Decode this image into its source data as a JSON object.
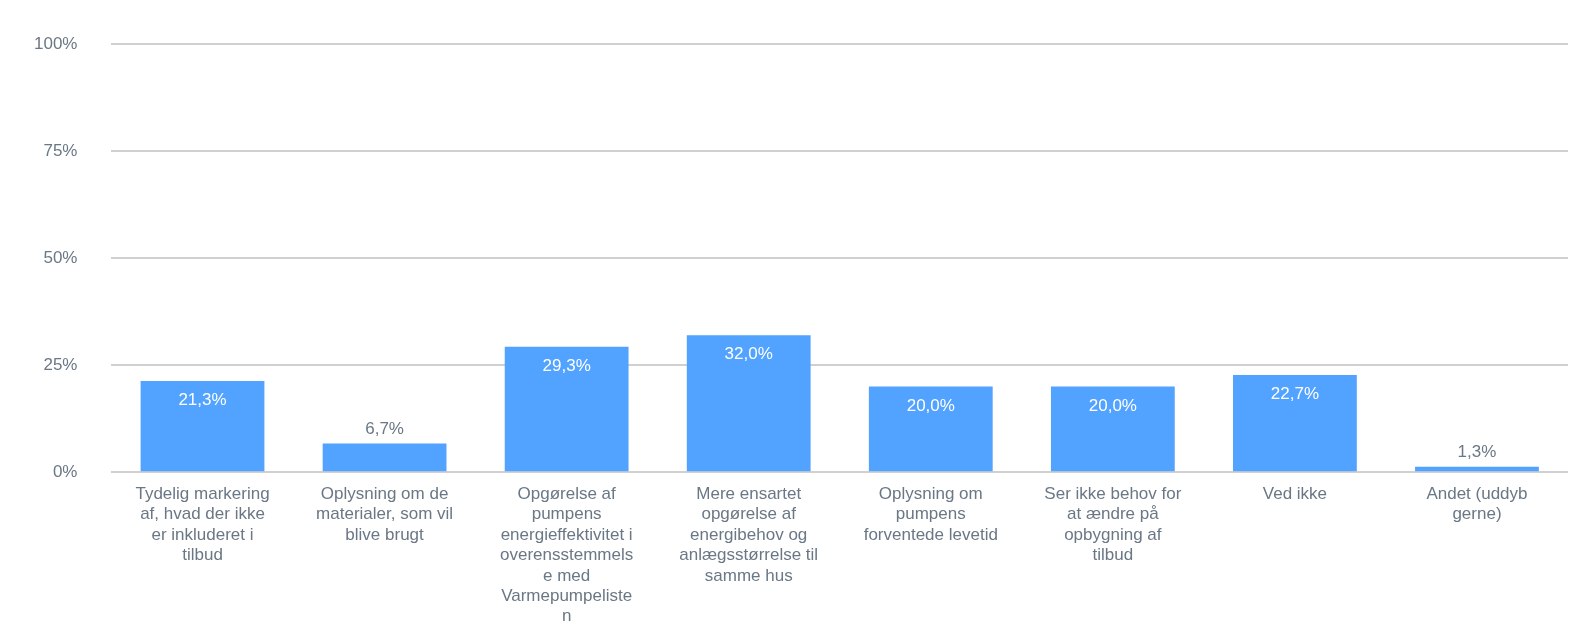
{
  "chart_data": {
    "type": "bar",
    "categories": [
      "Tydelig markering af, hvad der ikke er inkluderet i tilbud",
      "Oplysning om de materialer, som vil blive brugt",
      "Opgørelse af pumpens energieffektivitet i overensstemmelse med Varmepumpelisten",
      "Mere ensartet opgørelse af energibehov og anlægsstørrelse til samme hus",
      "Oplysning om pumpens forventede levetid",
      "Ser ikke behov for at ændre på opbygning af tilbud",
      "Ved ikke",
      "Andet (uddyb gerne)"
    ],
    "values": [
      21.3,
      6.7,
      29.3,
      32.0,
      20.0,
      20.0,
      22.7,
      1.3
    ],
    "value_labels": [
      "21,3%",
      "6,7%",
      "29,3%",
      "32,0%",
      "20,0%",
      "20,0%",
      "22,7%",
      "1,3%"
    ],
    "color": "#52a2ff",
    "ylim": [
      0,
      100
    ],
    "yticks": [
      {
        "value": 0,
        "label": "0%"
      },
      {
        "value": 25,
        "label": "25%"
      },
      {
        "value": 50,
        "label": "50%"
      },
      {
        "value": 75,
        "label": "75%"
      },
      {
        "value": 100,
        "label": "100%"
      }
    ],
    "grid": "y",
    "legend": false
  }
}
